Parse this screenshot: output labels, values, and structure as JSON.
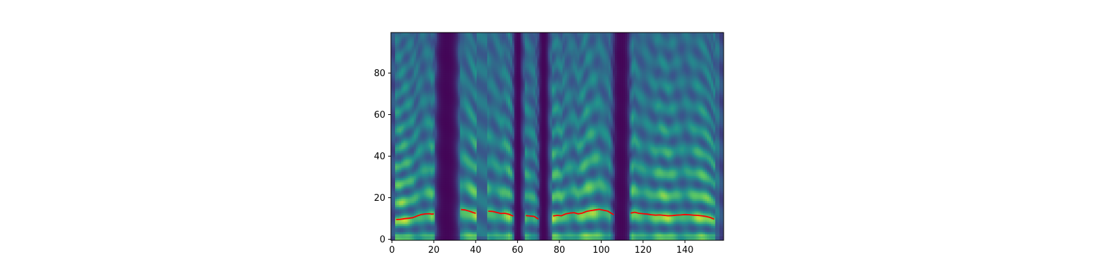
{
  "chart_data": {
    "type": "heatmap",
    "title": "",
    "xlabel": "",
    "ylabel": "",
    "xlim": [
      -0.5,
      158.5
    ],
    "ylim": [
      -0.5,
      99.5
    ],
    "n_frames": 159,
    "n_bins": 100,
    "colormap": "viridis",
    "colormap_stops": [
      "#440154",
      "#3b528b",
      "#21918c",
      "#5ec962",
      "#fde725"
    ],
    "xticks": [
      0,
      20,
      40,
      60,
      80,
      100,
      120,
      140
    ],
    "xtick_labels": [
      "0",
      "20",
      "40",
      "60",
      "80",
      "100",
      "120",
      "140"
    ],
    "yticks": [
      0,
      20,
      40,
      60,
      80
    ],
    "ytick_labels": [
      "0",
      "20",
      "40",
      "60",
      "80"
    ],
    "silent_regions": [
      [
        21.5,
        31
      ],
      [
        58.5,
        62
      ],
      [
        70.5,
        74.5
      ],
      [
        106,
        113
      ]
    ],
    "pitch_contour": {
      "color": "#ff0000",
      "segments": [
        [
          [
            2,
            9.5
          ],
          [
            4,
            9.6
          ],
          [
            6,
            9.9
          ],
          [
            8,
            10.1
          ],
          [
            10,
            10.4
          ],
          [
            12,
            11.2
          ],
          [
            14,
            11.9
          ],
          [
            16,
            12.2
          ],
          [
            18,
            12.3
          ],
          [
            19,
            12.1
          ],
          [
            20,
            12.2
          ]
        ],
        [
          [
            33,
            14.3
          ],
          [
            35,
            14.1
          ],
          [
            37,
            13.5
          ],
          [
            39,
            12.8
          ],
          [
            40,
            12.5
          ]
        ],
        [
          [
            46,
            13.5
          ],
          [
            48,
            13.4
          ],
          [
            50,
            12.9
          ],
          [
            52,
            12.4
          ],
          [
            54,
            12.5
          ],
          [
            56,
            12.0
          ],
          [
            58,
            11.1
          ]
        ],
        [
          [
            64,
            11.4
          ],
          [
            66,
            11.2
          ],
          [
            68,
            11.0
          ],
          [
            70,
            9.7
          ]
        ],
        [
          [
            77,
            11.2
          ],
          [
            79,
            11.5
          ],
          [
            81,
            11.3
          ],
          [
            83,
            12.2
          ],
          [
            85,
            12.6
          ],
          [
            87,
            12.8
          ],
          [
            89,
            12.2
          ],
          [
            91,
            12.6
          ],
          [
            93,
            13.4
          ],
          [
            95,
            13.8
          ],
          [
            97,
            14.1
          ],
          [
            99,
            14.4
          ],
          [
            101,
            14.0
          ],
          [
            103,
            13.6
          ],
          [
            104,
            13.0
          ],
          [
            106,
            11.8
          ]
        ],
        [
          [
            114,
            12.6
          ],
          [
            116,
            13.0
          ],
          [
            118,
            12.5
          ],
          [
            120,
            12.3
          ],
          [
            122,
            12.1
          ],
          [
            124,
            11.8
          ],
          [
            126,
            11.6
          ],
          [
            128,
            11.7
          ],
          [
            130,
            11.5
          ],
          [
            132,
            11.3
          ],
          [
            134,
            11.4
          ],
          [
            136,
            11.6
          ],
          [
            138,
            11.7
          ],
          [
            140,
            11.9
          ],
          [
            142,
            11.8
          ],
          [
            144,
            11.6
          ],
          [
            146,
            11.5
          ],
          [
            148,
            11.3
          ],
          [
            150,
            11.0
          ],
          [
            152,
            10.5
          ],
          [
            154,
            9.7
          ]
        ]
      ]
    }
  }
}
